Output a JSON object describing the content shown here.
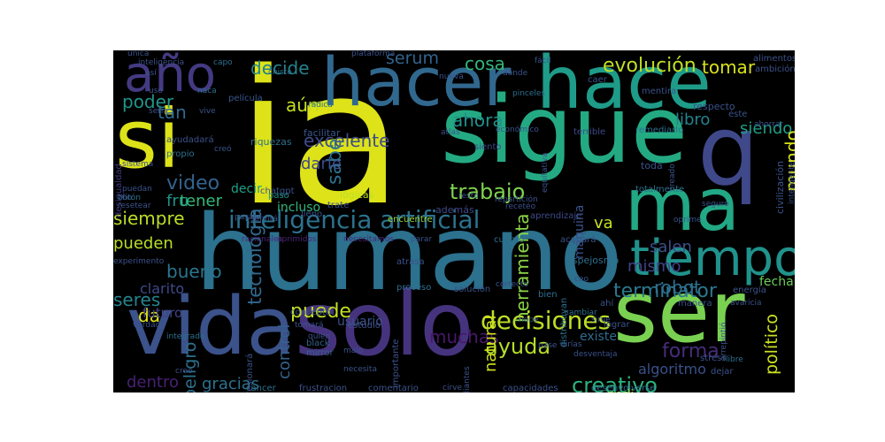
{
  "word_cloud": {
    "background": "#000000",
    "words": [
      {
        "text": "ia",
        "color": "#dde318",
        "vertical": false
      },
      {
        "text": "humano",
        "color": "#2c718e",
        "vertical": false
      },
      {
        "text": "sigue",
        "color": "#24aa83",
        "vertical": false
      },
      {
        "text": "hace",
        "color": "#1e9c89",
        "vertical": false
      },
      {
        "text": "hacer",
        "color": "#31688e",
        "vertical": false
      },
      {
        "text": "si",
        "color": "#dde318",
        "vertical": false
      },
      {
        "text": "solo",
        "color": "#46337e",
        "vertical": false
      },
      {
        "text": "ser",
        "color": "#7ad151",
        "vertical": false
      },
      {
        "text": "vida",
        "color": "#3b528b",
        "vertical": false
      },
      {
        "text": "q",
        "color": "#3f4889",
        "vertical": false
      },
      {
        "text": "ma",
        "color": "#22a884",
        "vertical": false
      },
      {
        "text": "tiempo",
        "color": "#20928c",
        "vertical": false
      },
      {
        "text": "año",
        "color": "#443a83",
        "vertical": false
      },
      {
        "text": "inteligencia artificial",
        "color": "#2c728e",
        "vertical": false
      },
      {
        "text": "decisiones",
        "color": "#bddf26",
        "vertical": false
      },
      {
        "text": "trabajo",
        "color": "#7fd34e",
        "vertical": false
      },
      {
        "text": "puede",
        "color": "#c2df23",
        "vertical": false
      },
      {
        "text": "terminator",
        "color": "#2a788e",
        "vertical": false
      },
      {
        "text": "evolución",
        "color": "#c0df25",
        "vertical": false
      },
      {
        "text": "tecnología",
        "color": "#31688e",
        "vertical": true
      },
      {
        "text": "video",
        "color": "#33638d",
        "vertical": false
      },
      {
        "text": "excelente",
        "color": "#3e4a89",
        "vertical": false
      },
      {
        "text": "ayuda",
        "color": "#b5de2b",
        "vertical": false
      },
      {
        "text": "creativo",
        "color": "#2db27d",
        "vertical": false
      },
      {
        "text": "forma",
        "color": "#472d7b",
        "vertical": false
      },
      {
        "text": "robot",
        "color": "#2e6e8e",
        "vertical": false
      },
      {
        "text": "bueno",
        "color": "#2a768e",
        "vertical": false
      },
      {
        "text": "seres",
        "color": "#25848e",
        "vertical": false
      },
      {
        "text": "siempre",
        "color": "#bade28",
        "vertical": false
      },
      {
        "text": "muchas",
        "color": "#48186a",
        "vertical": false
      },
      {
        "text": "pueden",
        "color": "#b8de29",
        "vertical": false
      },
      {
        "text": "mismo",
        "color": "#424086",
        "vertical": false
      },
      {
        "text": "salen",
        "color": "#3d4e8a",
        "vertical": false
      },
      {
        "text": "tomar",
        "color": "#d8e219",
        "vertical": false
      },
      {
        "text": "cosa",
        "color": "#32b67a",
        "vertical": false
      },
      {
        "text": "serum",
        "color": "#33638d",
        "vertical": false
      },
      {
        "text": "decide",
        "color": "#25838e",
        "vertical": false
      },
      {
        "text": "poder",
        "color": "#1f958b",
        "vertical": false
      },
      {
        "text": "ahora",
        "color": "#21918c",
        "vertical": false
      },
      {
        "text": "sabe",
        "color": "#2c718e",
        "vertical": true
      },
      {
        "text": "aún",
        "color": "#c5e021",
        "vertical": false
      },
      {
        "text": "tan",
        "color": "#30698e",
        "vertical": false
      },
      {
        "text": "siendo",
        "color": "#1f9f88",
        "vertical": false
      },
      {
        "text": "mundo",
        "color": "#dae319",
        "vertical": true
      },
      {
        "text": "libro",
        "color": "#25838e",
        "vertical": false
      },
      {
        "text": "darle",
        "color": "#3e4a89",
        "vertical": false
      },
      {
        "text": "fru",
        "color": "#20928c",
        "vertical": false
      },
      {
        "text": "tener",
        "color": "#35b779",
        "vertical": false
      },
      {
        "text": "va",
        "color": "#c8e020",
        "vertical": false
      },
      {
        "text": "dentro",
        "color": "#482173",
        "vertical": false
      },
      {
        "text": "gracias",
        "color": "#2c728e",
        "vertical": false
      },
      {
        "text": "peligro",
        "color": "#2d708e",
        "vertical": true
      },
      {
        "text": "control",
        "color": "#34618d",
        "vertical": true
      },
      {
        "text": "natural",
        "color": "#d0e11c",
        "vertical": true
      },
      {
        "text": "político",
        "color": "#cae11f",
        "vertical": true
      },
      {
        "text": "herramienta",
        "color": "#8bd646",
        "vertical": true
      },
      {
        "text": "da",
        "color": "#e2e418",
        "vertical": false
      },
      {
        "text": "clarito",
        "color": "#3e4989",
        "vertical": false
      },
      {
        "text": "futuro",
        "color": "#414487",
        "vertical": false
      },
      {
        "text": "fecha",
        "color": "#6ccd5a",
        "vertical": false
      },
      {
        "text": "algoritmo",
        "color": "#3b518b",
        "vertical": false
      },
      {
        "text": "existe",
        "color": "#2f6c8e",
        "vertical": false
      },
      {
        "text": "pedi",
        "color": "#9bd93c",
        "vertical": false
      },
      {
        "text": "usuario",
        "color": "#3b528b",
        "vertical": false
      },
      {
        "text": "decir",
        "color": "#1fa088",
        "vertical": false
      },
      {
        "text": "incluso",
        "color": "#32b67a",
        "vertical": false
      },
      {
        "text": "riquezas",
        "color": "#2d708e",
        "vertical": false
      },
      {
        "text": "facilitar",
        "color": "#39568c",
        "vertical": false
      },
      {
        "text": "película",
        "color": "#39568c",
        "vertical": false
      },
      {
        "text": "siento",
        "color": "#3f4788",
        "vertical": false
      },
      {
        "text": "remediarlo",
        "color": "#2d708e",
        "vertical": false
      },
      {
        "text": "terrible",
        "color": "#3e4a89",
        "vertical": false
      },
      {
        "text": "además",
        "color": "#3e4a89",
        "vertical": false
      },
      {
        "text": "aprendizaje",
        "color": "#3e4a89",
        "vertical": false
      },
      {
        "text": "máquina",
        "color": "#3b528b",
        "vertical": true
      },
      {
        "text": "black",
        "color": "#33638d",
        "vertical": false
      },
      {
        "text": "mirror",
        "color": "#33638d",
        "vertical": false
      },
      {
        "text": "desigualdad",
        "color": "#453882",
        "vertical": true
      },
      {
        "text": "ayudadará",
        "color": "#3b528b",
        "vertical": false
      },
      {
        "text": "propio",
        "color": "#2d708e",
        "vertical": false
      },
      {
        "text": "chatgpt",
        "color": "#3b528b",
        "vertical": false
      },
      {
        "text": "lógicas",
        "color": "#bddf26",
        "vertical": false
      },
      {
        "text": "encuentre",
        "color": "#9bd93c",
        "vertical": false
      },
      {
        "text": "paso",
        "color": "#20928c",
        "vertical": false
      },
      {
        "text": "lleno",
        "color": "#3b528b",
        "vertical": false
      },
      {
        "text": "trate",
        "color": "#3b528b",
        "vertical": false
      },
      {
        "text": "racionales",
        "color": "#482878",
        "vertical": false
      },
      {
        "text": "oprimidos",
        "color": "#482878",
        "vertical": false
      },
      {
        "text": "necesitamos",
        "color": "#482878",
        "vertical": false
      },
      {
        "text": "parar",
        "color": "#3b528b",
        "vertical": false
      },
      {
        "text": "cuento",
        "color": "#2d708e",
        "vertical": false
      },
      {
        "text": "acabará",
        "color": "#3b528b",
        "vertical": false
      },
      {
        "text": "espejosmo",
        "color": "#2d708e",
        "vertical": false
      },
      {
        "text": "atrasa",
        "color": "#3b528b",
        "vertical": false
      },
      {
        "text": "proceso",
        "color": "#2d708e",
        "vertical": false
      },
      {
        "text": "solución",
        "color": "#3b528b",
        "vertical": false
      },
      {
        "text": "correcto",
        "color": "#3b528b",
        "vertical": false
      },
      {
        "text": "estudio",
        "color": "#3b528b",
        "vertical": false
      },
      {
        "text": "concepto",
        "color": "#3b528b",
        "vertical": false
      },
      {
        "text": "tomará",
        "color": "#3b528b",
        "vertical": false
      },
      {
        "text": "verdad",
        "color": "#3b528b",
        "vertical": false
      },
      {
        "text": "integrado",
        "color": "#2d708e",
        "vertical": false
      },
      {
        "text": "creo",
        "color": "#3b528b",
        "vertical": false
      },
      {
        "text": "cancer",
        "color": "#2d708e",
        "vertical": false
      },
      {
        "text": "frustracion",
        "color": "#3b528b",
        "vertical": false
      },
      {
        "text": "comentario",
        "color": "#3b528b",
        "vertical": false
      },
      {
        "text": "cirve",
        "color": "#3b528b",
        "vertical": false
      },
      {
        "text": "capacidades",
        "color": "#3b528b",
        "vertical": false
      },
      {
        "text": "desenvolverse",
        "color": "#2d708e",
        "vertical": false
      },
      {
        "text": "estudiantes",
        "color": "#3b528b",
        "vertical": true
      },
      {
        "text": "pase",
        "color": "#3b528b",
        "vertical": false
      },
      {
        "text": "desventaja",
        "color": "#3b528b",
        "vertical": false
      },
      {
        "text": "dirías",
        "color": "#3b528b",
        "vertical": false
      },
      {
        "text": "malo",
        "color": "#3b528b",
        "vertical": false
      },
      {
        "text": "necesita",
        "color": "#3b528b",
        "vertical": false
      },
      {
        "text": "lograr",
        "color": "#3b528b",
        "vertical": false
      },
      {
        "text": "cambiar",
        "color": "#2d708e",
        "vertical": false
      },
      {
        "text": "nope",
        "color": "#3b528b",
        "vertical": false
      },
      {
        "text": "manera",
        "color": "#3b528b",
        "vertical": false
      },
      {
        "text": "avaricia",
        "color": "#3b528b",
        "vertical": false
      },
      {
        "text": "energía",
        "color": "#3b528b",
        "vertical": false
      },
      {
        "text": "ahorrar",
        "color": "#3b528b",
        "vertical": false
      },
      {
        "text": "alimentos",
        "color": "#3b528b",
        "vertical": false
      },
      {
        "text": "ambición",
        "color": "#3b528b",
        "vertical": false
      },
      {
        "text": "respecto",
        "color": "#3b528b",
        "vertical": false
      },
      {
        "text": "éste",
        "color": "#3b528b",
        "vertical": false
      },
      {
        "text": "mentira",
        "color": "#3b528b",
        "vertical": false
      },
      {
        "text": "caer",
        "color": "#3b528b",
        "vertical": false
      },
      {
        "text": "toda",
        "color": "#3b528b",
        "vertical": false
      },
      {
        "text": "creado",
        "color": "#3b528b",
        "vertical": true
      },
      {
        "text": "totalmente",
        "color": "#2d708e",
        "vertical": false
      },
      {
        "text": "oprime",
        "color": "#3b528b",
        "vertical": false
      },
      {
        "text": "seguro",
        "color": "#3b528b",
        "vertical": false
      },
      {
        "text": "civilización",
        "color": "#3b528b",
        "vertical": true
      },
      {
        "text": "inteligente",
        "color": "#3b528b",
        "vertical": true
      },
      {
        "text": "stress",
        "color": "#3b528b",
        "vertical": false
      },
      {
        "text": "dejar",
        "color": "#3b528b",
        "vertical": false
      },
      {
        "text": "libre",
        "color": "#2d708e",
        "vertical": false
      },
      {
        "text": "arrepintió",
        "color": "#3b528b",
        "vertical": true
      },
      {
        "text": "distribuyan",
        "color": "#2d708e",
        "vertical": true
      },
      {
        "text": "ceo",
        "color": "#3b528b",
        "vertical": false
      },
      {
        "text": "ahí",
        "color": "#3b528b",
        "vertical": false
      },
      {
        "text": "bien",
        "color": "#2d708e",
        "vertical": false
      },
      {
        "text": "presionará",
        "color": "#3b528b",
        "vertical": true
      },
      {
        "text": "importante",
        "color": "#3b528b",
        "vertical": true
      },
      {
        "text": "quien",
        "color": "#3b528b",
        "vertical": false
      },
      {
        "text": "única",
        "color": "#3b528b",
        "vertical": false
      },
      {
        "text": "inteligencia",
        "color": "#3b528b",
        "vertical": false
      },
      {
        "text": "capo",
        "color": "#2d708e",
        "vertical": false
      },
      {
        "text": "así",
        "color": "#3b528b",
        "vertical": false
      },
      {
        "text": "chiste",
        "color": "#2d708e",
        "vertical": false
      },
      {
        "text": "plataforma",
        "color": "#3b528b",
        "vertical": false
      },
      {
        "text": "fácil",
        "color": "#3b528b",
        "vertical": false
      },
      {
        "text": "dónde",
        "color": "#3b528b",
        "vertical": false
      },
      {
        "text": "nueva",
        "color": "#3b528b",
        "vertical": false
      },
      {
        "text": "pinceles",
        "color": "#2d708e",
        "vertical": false
      },
      {
        "text": "económico",
        "color": "#3b528b",
        "vertical": false
      },
      {
        "text": "atlas",
        "color": "#3b528b",
        "vertical": false
      },
      {
        "text": "radica",
        "color": "#2d708e",
        "vertical": false
      },
      {
        "text": "uso",
        "color": "#3b528b",
        "vertical": false
      },
      {
        "text": "naca",
        "color": "#2d708e",
        "vertical": false
      },
      {
        "text": "sería",
        "color": "#3b528b",
        "vertical": false
      },
      {
        "text": "vive",
        "color": "#3b528b",
        "vertical": false
      },
      {
        "text": "creó",
        "color": "#3b528b",
        "vertical": false
      },
      {
        "text": "sistema",
        "color": "#3b528b",
        "vertical": false
      },
      {
        "text": "puedan",
        "color": "#3b528b",
        "vertical": false
      },
      {
        "text": "botón",
        "color": "#2d708e",
        "vertical": false
      },
      {
        "text": "resetear",
        "color": "#3b528b",
        "vertical": false
      },
      {
        "text": "fin",
        "color": "#3b528b",
        "vertical": false
      },
      {
        "text": "resto",
        "color": "#3b528b",
        "vertical": false
      },
      {
        "text": "repartición",
        "color": "#3b528b",
        "vertical": false
      },
      {
        "text": "recetéo",
        "color": "#3b528b",
        "vertical": false
      },
      {
        "text": "sirve",
        "color": "#3b528b",
        "vertical": false
      },
      {
        "text": "pasará",
        "color": "#3b528b",
        "vertical": false
      },
      {
        "text": "servirá",
        "color": "#3b528b",
        "vertical": false
      },
      {
        "text": "equitativa",
        "color": "#3b528b",
        "vertical": true
      },
      {
        "text": "experimento",
        "color": "#3b528b",
        "vertical": false
      }
    ]
  }
}
